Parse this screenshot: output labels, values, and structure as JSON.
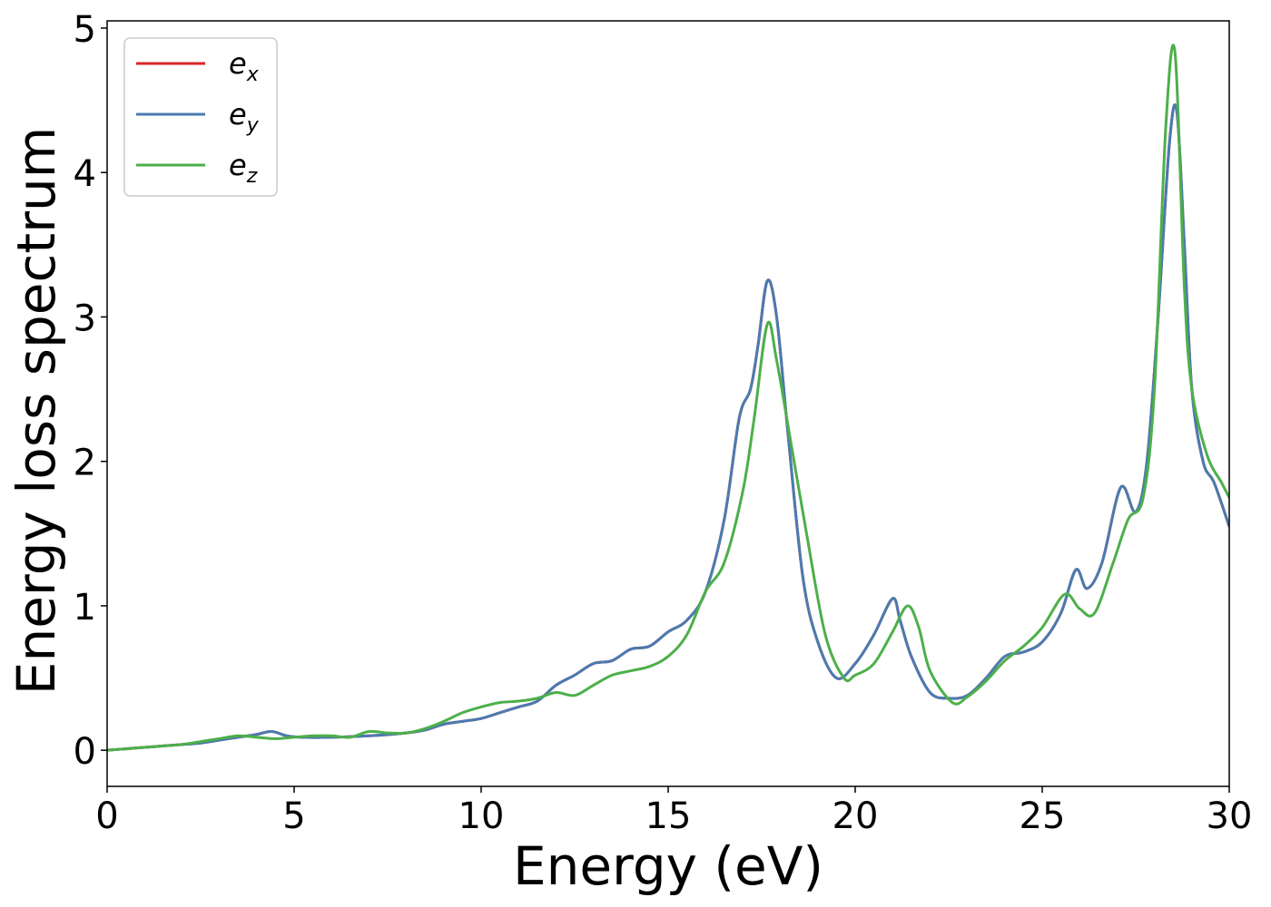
{
  "chart_data": {
    "type": "line",
    "title": "",
    "xlabel": "Energy (eV)",
    "ylabel": "Energy loss spectrum",
    "xlim": [
      0,
      30
    ],
    "ylim": [
      -0.25,
      5.05
    ],
    "xticks": [
      0,
      5,
      10,
      15,
      20,
      25,
      30
    ],
    "xtick_labels": [
      "0",
      "5",
      "10",
      "15",
      "20",
      "25",
      "30"
    ],
    "yticks": [
      0,
      1,
      2,
      3,
      4,
      5
    ],
    "ytick_labels": [
      "0",
      "1",
      "2",
      "3",
      "4",
      "5"
    ],
    "grid": false,
    "legend": {
      "position": "top-left"
    },
    "series": [
      {
        "name": "e_x",
        "legend_base": "e",
        "legend_sub": "x",
        "color": "#d62728",
        "x": [
          0,
          0.5,
          1,
          1.5,
          2,
          2.5,
          3,
          3.5,
          4,
          4.4,
          4.8,
          5.2,
          6,
          7,
          8,
          8.5,
          9,
          9.5,
          10,
          10.5,
          11,
          11.5,
          12,
          12.5,
          13,
          13.5,
          14,
          14.5,
          15,
          15.5,
          16,
          16.5,
          16.9,
          17.2,
          17.4,
          17.65,
          17.9,
          18.2,
          18.6,
          19,
          19.5,
          20,
          20.5,
          21,
          21.2,
          21.5,
          22,
          22.5,
          23,
          23.5,
          24,
          24.5,
          25,
          25.5,
          25.9,
          26.2,
          26.6,
          27.1,
          27.5,
          27.8,
          28.1,
          28.4,
          28.6,
          28.8,
          29,
          29.3,
          29.6,
          30
        ],
        "y": [
          0.0,
          0.01,
          0.02,
          0.03,
          0.04,
          0.05,
          0.07,
          0.09,
          0.11,
          0.13,
          0.1,
          0.09,
          0.09,
          0.1,
          0.12,
          0.14,
          0.18,
          0.2,
          0.22,
          0.26,
          0.3,
          0.34,
          0.45,
          0.52,
          0.6,
          0.62,
          0.7,
          0.72,
          0.82,
          0.9,
          1.1,
          1.6,
          2.3,
          2.5,
          2.8,
          3.25,
          3.0,
          2.2,
          1.2,
          0.75,
          0.5,
          0.6,
          0.8,
          1.05,
          0.9,
          0.65,
          0.4,
          0.36,
          0.38,
          0.5,
          0.65,
          0.68,
          0.75,
          0.95,
          1.25,
          1.12,
          1.3,
          1.82,
          1.65,
          2.0,
          3.0,
          4.2,
          4.42,
          3.5,
          2.5,
          2.0,
          1.85,
          1.55
        ]
      },
      {
        "name": "e_y",
        "legend_base": "e",
        "legend_sub": "y",
        "color": "#4a7bb0",
        "x": [
          0,
          0.5,
          1,
          1.5,
          2,
          2.5,
          3,
          3.5,
          4,
          4.4,
          4.8,
          5.2,
          6,
          7,
          8,
          8.5,
          9,
          9.5,
          10,
          10.5,
          11,
          11.5,
          12,
          12.5,
          13,
          13.5,
          14,
          14.5,
          15,
          15.5,
          16,
          16.5,
          16.9,
          17.2,
          17.4,
          17.65,
          17.9,
          18.2,
          18.6,
          19,
          19.5,
          20,
          20.5,
          21,
          21.2,
          21.5,
          22,
          22.5,
          23,
          23.5,
          24,
          24.5,
          25,
          25.5,
          25.9,
          26.2,
          26.6,
          27.1,
          27.5,
          27.8,
          28.1,
          28.4,
          28.6,
          28.8,
          29,
          29.3,
          29.6,
          30
        ],
        "y": [
          0.0,
          0.01,
          0.02,
          0.03,
          0.04,
          0.05,
          0.07,
          0.09,
          0.11,
          0.13,
          0.1,
          0.09,
          0.09,
          0.1,
          0.12,
          0.14,
          0.18,
          0.2,
          0.22,
          0.26,
          0.3,
          0.34,
          0.45,
          0.52,
          0.6,
          0.62,
          0.7,
          0.72,
          0.82,
          0.9,
          1.1,
          1.6,
          2.3,
          2.5,
          2.8,
          3.25,
          3.0,
          2.2,
          1.2,
          0.75,
          0.5,
          0.6,
          0.8,
          1.05,
          0.9,
          0.65,
          0.4,
          0.36,
          0.38,
          0.5,
          0.65,
          0.68,
          0.75,
          0.95,
          1.25,
          1.12,
          1.3,
          1.82,
          1.65,
          2.0,
          3.0,
          4.2,
          4.42,
          3.5,
          2.5,
          2.0,
          1.85,
          1.55
        ]
      },
      {
        "name": "e_z",
        "legend_base": "e",
        "legend_sub": "z",
        "color": "#4daf4a",
        "x": [
          0,
          0.5,
          1,
          1.5,
          2,
          2.5,
          3,
          3.5,
          4,
          4.5,
          5,
          5.5,
          6,
          6.5,
          7,
          7.5,
          8,
          8.5,
          9,
          9.5,
          10,
          10.5,
          11,
          11.5,
          12,
          12.5,
          13,
          13.5,
          14,
          14.5,
          15,
          15.5,
          16,
          16.5,
          17,
          17.3,
          17.65,
          17.9,
          18.3,
          18.7,
          19.2,
          19.7,
          20,
          20.5,
          21,
          21.4,
          21.7,
          22,
          22.6,
          23,
          23.5,
          24,
          24.5,
          25,
          25.6,
          26,
          26.4,
          26.9,
          27.3,
          27.7,
          28,
          28.3,
          28.55,
          28.8,
          29,
          29.4,
          29.8,
          30
        ],
        "y": [
          0.0,
          0.01,
          0.02,
          0.03,
          0.04,
          0.06,
          0.08,
          0.1,
          0.09,
          0.08,
          0.09,
          0.1,
          0.1,
          0.09,
          0.13,
          0.12,
          0.12,
          0.15,
          0.2,
          0.26,
          0.3,
          0.33,
          0.34,
          0.36,
          0.4,
          0.38,
          0.45,
          0.52,
          0.55,
          0.58,
          0.65,
          0.8,
          1.1,
          1.3,
          1.8,
          2.3,
          2.95,
          2.7,
          2.1,
          1.5,
          0.8,
          0.5,
          0.52,
          0.6,
          0.82,
          1.0,
          0.85,
          0.55,
          0.33,
          0.37,
          0.48,
          0.62,
          0.72,
          0.85,
          1.08,
          0.98,
          0.95,
          1.3,
          1.6,
          1.75,
          2.5,
          4.3,
          4.83,
          3.2,
          2.5,
          2.05,
          1.85,
          1.75
        ]
      }
    ]
  }
}
